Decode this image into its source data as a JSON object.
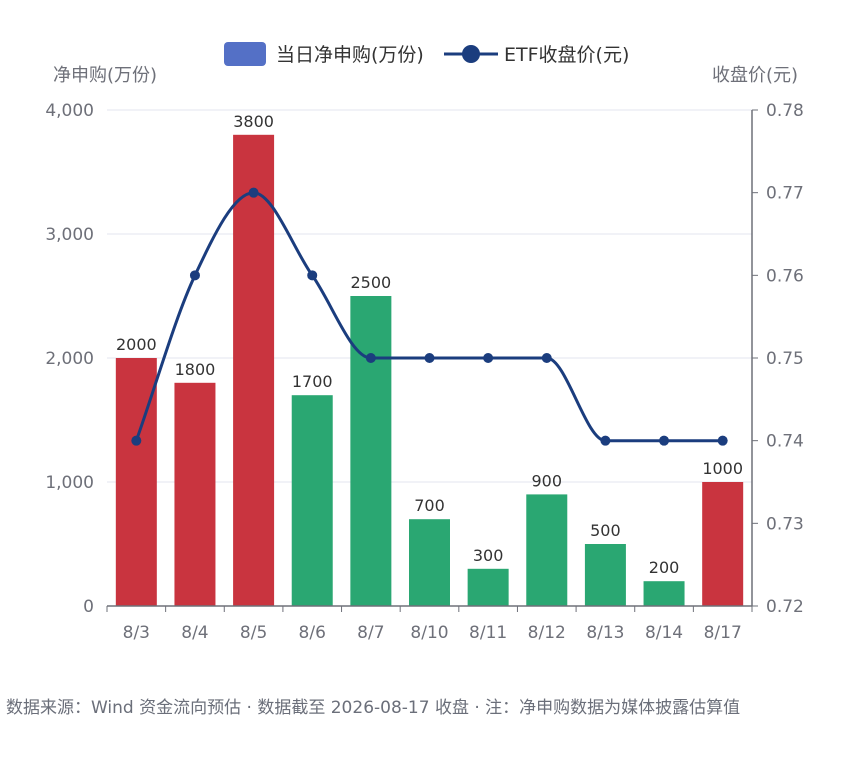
{
  "legend": {
    "bar_label": "当日净申购(万份)",
    "line_label": "ETF收盘价(元)"
  },
  "footnote": "数据来源：Wind 资金流向预估 · 数据截至 2026-08-17 收盘 · 注：净申购数据为媒体披露估算值",
  "colors": {
    "bar_red": "#c9343f",
    "bar_green": "#2aa772",
    "line": "#1b3d7e",
    "legend_bar": "#5470c6",
    "axis_text": "#6e7079",
    "grid": "#e3e6ef"
  },
  "chart_data": {
    "type": "bar",
    "categories": [
      "8/3",
      "8/4",
      "8/5",
      "8/6",
      "8/7",
      "8/10",
      "8/11",
      "8/12",
      "8/13",
      "8/14",
      "8/17"
    ],
    "series": [
      {
        "name": "当日净申购(万份)",
        "type": "bar",
        "axis": "left",
        "values": [
          2000,
          1800,
          3800,
          1700,
          2500,
          700,
          300,
          900,
          500,
          200,
          1000
        ],
        "bar_colors": [
          "red",
          "red",
          "red",
          "green",
          "green",
          "green",
          "green",
          "green",
          "green",
          "green",
          "red"
        ]
      },
      {
        "name": "ETF收盘价(元)",
        "type": "line",
        "axis": "right",
        "values": [
          0.74,
          0.76,
          0.77,
          0.76,
          0.75,
          0.75,
          0.75,
          0.75,
          0.74,
          0.74,
          0.74
        ]
      }
    ],
    "y_left": {
      "label": "净申购(万份)",
      "range": [
        0,
        4000
      ],
      "ticks": [
        "0",
        "1,000",
        "2,000",
        "3,000",
        "4,000"
      ]
    },
    "y_right": {
      "label": "收盘价(元)",
      "range": [
        0.72,
        0.78
      ],
      "ticks": [
        "0.72",
        "0.73",
        "0.74",
        "0.75",
        "0.76",
        "0.77",
        "0.78"
      ]
    },
    "grid": true,
    "legend_position": "top-center",
    "data_labels": true
  }
}
